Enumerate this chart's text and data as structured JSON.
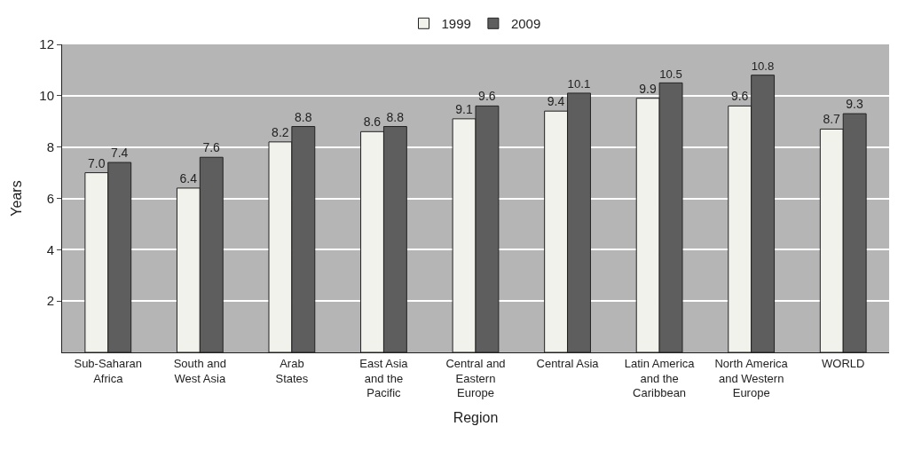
{
  "chart_data": {
    "type": "bar",
    "xlabel": "Region",
    "ylabel": "Years",
    "categories": [
      "Sub-Saharan\nAfrica",
      "South and\nWest Asia",
      "Arab\nStates",
      "East Asia\nand the\nPacific",
      "Central and\nEastern\nEurope",
      "Central Asia",
      "Latin America\nand the\nCaribbean",
      "North America\nand Western\nEurope",
      "WORLD"
    ],
    "series": [
      {
        "name": "1999",
        "color": "#f2f2ec",
        "values": [
          7.0,
          6.4,
          8.2,
          8.6,
          9.1,
          9.4,
          9.9,
          9.6,
          8.7
        ],
        "value_labels": [
          "7.0",
          "6.4",
          "8.2",
          "8.6",
          "9.1",
          "9.4",
          "9.9",
          "9.6",
          "8.7"
        ]
      },
      {
        "name": "2009",
        "color": "#5e5e5e",
        "values": [
          7.4,
          7.6,
          8.8,
          8.8,
          9.6,
          10.1,
          10.5,
          10.8,
          9.3
        ],
        "value_labels": [
          "7.4",
          "7.6",
          "8.8",
          "8.8",
          "9.6",
          "10.1",
          "10.5",
          "10.8",
          "9.3"
        ]
      }
    ],
    "ylim": [
      0,
      12
    ],
    "yticks": [
      2,
      4,
      6,
      8,
      10,
      12
    ],
    "grid": "y",
    "legend": "top"
  }
}
